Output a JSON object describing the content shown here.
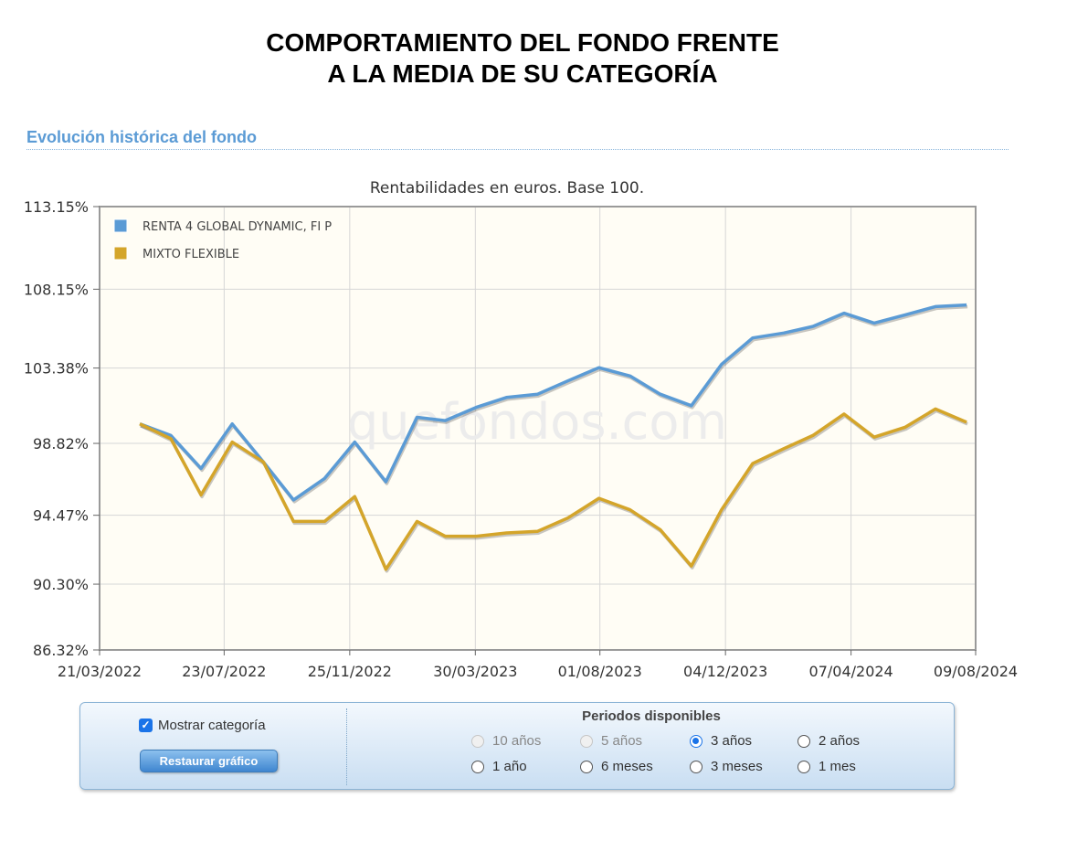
{
  "header": {
    "line1": "COMPORTAMIENTO DEL FONDO FRENTE",
    "line2": "A LA MEDIA DE SU CATEGORÍA"
  },
  "section": {
    "title": "Evolución histórica del fondo"
  },
  "chart_data": {
    "type": "line",
    "title": "Rentabilidades en euros. Base 100.",
    "watermark": "quefondos.com",
    "y_ticks": [
      "113.15%",
      "108.15%",
      "103.38%",
      "98.82%",
      "94.47%",
      "90.30%",
      "86.32%"
    ],
    "y_tick_values": [
      113.15,
      108.15,
      103.38,
      98.82,
      94.47,
      90.3,
      86.32
    ],
    "ylim": [
      86.32,
      113.15
    ],
    "x_ticks": [
      "21/03/2022",
      "23/07/2022",
      "25/11/2022",
      "30/03/2023",
      "01/08/2023",
      "04/12/2023",
      "07/04/2024",
      "09/08/2024"
    ],
    "x_range": [
      "21/03/2022",
      "09/08/2024"
    ],
    "grid": true,
    "legend_position": "top-left",
    "x": [
      "2022-04-30",
      "2022-05-31",
      "2022-06-30",
      "2022-07-31",
      "2022-08-31",
      "2022-09-30",
      "2022-10-31",
      "2022-11-30",
      "2022-12-31",
      "2023-01-31",
      "2023-02-28",
      "2023-03-31",
      "2023-04-30",
      "2023-05-31",
      "2023-06-30",
      "2023-07-31",
      "2023-08-31",
      "2023-09-30",
      "2023-10-31",
      "2023-11-30",
      "2023-12-31",
      "2024-01-31",
      "2024-02-29",
      "2024-03-31",
      "2024-04-30",
      "2024-05-31",
      "2024-06-30",
      "2024-07-31"
    ],
    "series": [
      {
        "name": "RENTA 4 GLOBAL DYNAMIC, FI P",
        "color": "#5b9bd5",
        "values": [
          100.0,
          99.3,
          97.3,
          100.0,
          97.7,
          95.4,
          96.7,
          98.9,
          96.5,
          100.4,
          100.2,
          101.0,
          101.6,
          101.8,
          102.6,
          103.4,
          102.9,
          101.8,
          101.1,
          103.6,
          105.2,
          105.5,
          105.9,
          106.7,
          106.1,
          106.6,
          107.1,
          107.2
        ]
      },
      {
        "name": "MIXTO FLEXIBLE",
        "color": "#d4a52a",
        "values": [
          100.0,
          99.1,
          95.7,
          98.9,
          97.7,
          94.1,
          94.1,
          95.6,
          91.2,
          94.1,
          93.2,
          93.2,
          93.4,
          93.5,
          94.3,
          95.5,
          94.8,
          93.6,
          91.4,
          94.8,
          97.6,
          98.5,
          99.3,
          100.6,
          99.2,
          99.8,
          100.9,
          100.1
        ]
      }
    ]
  },
  "controls": {
    "show_category_label": "Mostrar categoría",
    "show_category_checked": true,
    "restore_button": "Restaurar gráfico",
    "periods_title": "Periodos disponibles",
    "periods": [
      {
        "label": "10 años",
        "state": "disabled"
      },
      {
        "label": "5 años",
        "state": "disabled"
      },
      {
        "label": "3 años",
        "state": "selected"
      },
      {
        "label": "2 años",
        "state": "enabled"
      },
      {
        "label": "1 año",
        "state": "enabled"
      },
      {
        "label": "6 meses",
        "state": "enabled"
      },
      {
        "label": "3 meses",
        "state": "enabled"
      },
      {
        "label": "1 mes",
        "state": "enabled"
      }
    ]
  }
}
